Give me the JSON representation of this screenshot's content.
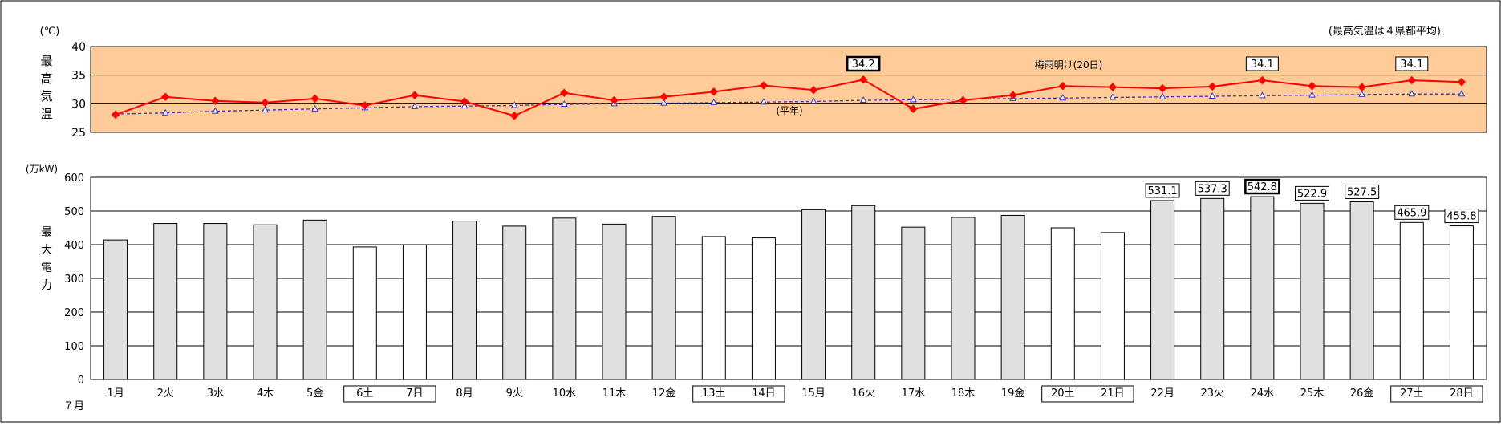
{
  "chart_data": [
    {
      "type": "line",
      "unit_label": "(℃)",
      "ylabel": "最高気温",
      "note": "(最高気温は４県都平均)",
      "ylim": [
        25,
        40
      ],
      "yticks": [
        25,
        30,
        35,
        40
      ],
      "x": [
        "1月",
        "2火",
        "3水",
        "4木",
        "5金",
        "6土",
        "7日",
        "8月",
        "9火",
        "10水",
        "11木",
        "12金",
        "13土",
        "14日",
        "15月",
        "16火",
        "17水",
        "18木",
        "19金",
        "20土",
        "21日",
        "22月",
        "23火",
        "24水",
        "25木",
        "26金",
        "27土",
        "28日"
      ],
      "series": [
        {
          "values": [
            28.1,
            31.2,
            30.5,
            30.2,
            30.9,
            29.7,
            31.5,
            30.4,
            27.9,
            31.9,
            30.6,
            31.2,
            32.1,
            33.2,
            32.4,
            34.2,
            29.1,
            30.6,
            31.5,
            33.1,
            32.9,
            32.7,
            33.0,
            34.1,
            33.1,
            32.9,
            34.1,
            33.8
          ],
          "color": "#ff0000"
        },
        {
          "name": "(平年)",
          "values": [
            28.2,
            28.4,
            28.7,
            28.9,
            29.1,
            29.3,
            29.5,
            29.6,
            29.7,
            29.9,
            30.0,
            30.1,
            30.2,
            30.3,
            30.4,
            30.6,
            30.7,
            30.8,
            30.9,
            31.0,
            31.1,
            31.2,
            31.3,
            31.4,
            31.5,
            31.6,
            31.7,
            31.7
          ],
          "color": "#3333cc"
        }
      ],
      "value_labels": [
        {
          "day_index": 15,
          "text": "34.2",
          "emphasis": true
        },
        {
          "day_index": 23,
          "text": "34.1",
          "emphasis": false
        },
        {
          "day_index": 26,
          "text": "34.1",
          "emphasis": false
        }
      ],
      "annotation": "梅雨明け(20日)",
      "grid": true,
      "background_color": "#ffcc99"
    },
    {
      "type": "bar",
      "unit_label": "(万kW)",
      "ylabel": "最大電力",
      "xlabel": "７月",
      "ylim": [
        0,
        600
      ],
      "yticks": [
        0,
        100,
        200,
        300,
        400,
        500,
        600
      ],
      "categories": [
        "1月",
        "2火",
        "3水",
        "4木",
        "5金",
        "6土",
        "7日",
        "8月",
        "9火",
        "10水",
        "11木",
        "12金",
        "13土",
        "14日",
        "15月",
        "16火",
        "17水",
        "18木",
        "19金",
        "20土",
        "21日",
        "22月",
        "23火",
        "24水",
        "25木",
        "26金",
        "27土",
        "28日"
      ],
      "values": [
        414,
        463,
        463,
        459,
        473,
        393,
        400,
        470,
        455,
        479,
        461,
        484,
        424,
        420,
        504,
        516,
        452,
        481,
        487,
        450,
        436,
        531.1,
        537.3,
        542.8,
        522.9,
        527.5,
        465.9,
        455.8
      ],
      "weekend": [
        false,
        false,
        false,
        false,
        false,
        true,
        true,
        false,
        false,
        false,
        false,
        false,
        true,
        true,
        false,
        false,
        false,
        false,
        false,
        true,
        true,
        false,
        false,
        false,
        false,
        false,
        true,
        true
      ],
      "value_labels": [
        {
          "day_index": 21,
          "text": "531.1",
          "emphasis": false
        },
        {
          "day_index": 22,
          "text": "537.3",
          "emphasis": false
        },
        {
          "day_index": 23,
          "text": "542.8",
          "emphasis": true
        },
        {
          "day_index": 24,
          "text": "522.9",
          "emphasis": false
        },
        {
          "day_index": 25,
          "text": "527.5",
          "emphasis": false
        },
        {
          "day_index": 26,
          "text": "465.9",
          "emphasis": false
        },
        {
          "day_index": 27,
          "text": "455.8",
          "emphasis": false
        }
      ],
      "weekday_color": "#e0e0e0",
      "weekend_color": "#ffffff",
      "grid": true
    }
  ]
}
